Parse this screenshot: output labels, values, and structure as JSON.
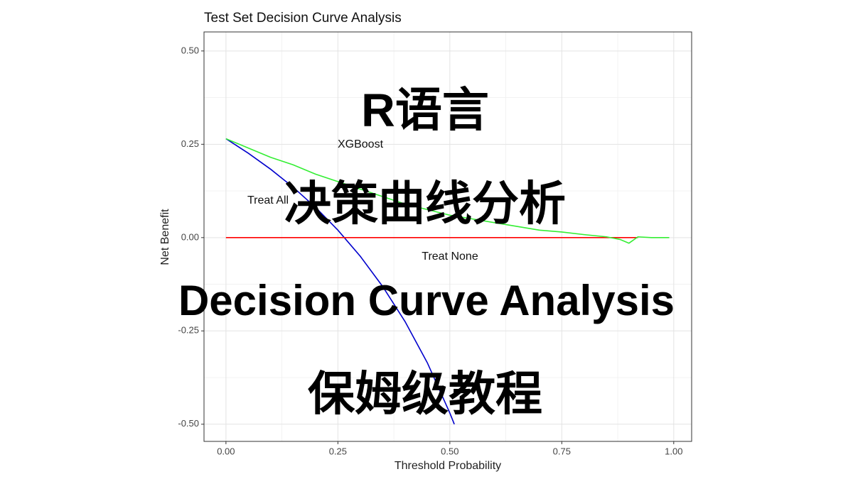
{
  "chart_data": {
    "type": "line",
    "title": "Test Set Decision Curve Analysis",
    "x_label": "Threshold Probability",
    "y_label": "Net Benefit",
    "xlim": [
      -0.049,
      1.04
    ],
    "ylim": [
      -0.546,
      0.551
    ],
    "xticks": [
      {
        "value": 0,
        "label": "0.00"
      },
      {
        "value": 0.25,
        "label": "0.25"
      },
      {
        "value": 0.5,
        "label": "0.50"
      },
      {
        "value": 0.75,
        "label": "0.75"
      },
      {
        "value": 1,
        "label": "1.00"
      }
    ],
    "yticks": [
      {
        "value": -0.5,
        "label": "-0.50"
      },
      {
        "value": -0.25,
        "label": "-0.25"
      },
      {
        "value": 0,
        "label": "0.00"
      },
      {
        "value": 0.25,
        "label": "0.25"
      },
      {
        "value": 0.5,
        "label": "0.50"
      }
    ],
    "grid": true,
    "series": [
      {
        "name": "Treat All",
        "color": "#0000cc",
        "x": [
          0,
          0.05,
          0.1,
          0.15,
          0.2,
          0.25,
          0.3,
          0.35,
          0.4,
          0.45,
          0.5,
          0.51
        ],
        "values": [
          0.265,
          0.226,
          0.183,
          0.135,
          0.081,
          0.02,
          -0.05,
          -0.131,
          -0.225,
          -0.336,
          -0.47,
          -0.5
        ]
      },
      {
        "name": "Treat None",
        "color": "#ff0000",
        "x": [
          0,
          0.92
        ],
        "values": [
          0,
          0
        ]
      },
      {
        "name": "XGBoost",
        "color": "#33ee33",
        "x": [
          0,
          0.05,
          0.1,
          0.15,
          0.2,
          0.25,
          0.3,
          0.35,
          0.4,
          0.45,
          0.5,
          0.55,
          0.6,
          0.65,
          0.7,
          0.75,
          0.8,
          0.85,
          0.88,
          0.9,
          0.92,
          0.95,
          0.99
        ],
        "values": [
          0.265,
          0.24,
          0.215,
          0.195,
          0.17,
          0.15,
          0.13,
          0.11,
          0.09,
          0.075,
          0.06,
          0.05,
          0.04,
          0.03,
          0.02,
          0.015,
          0.008,
          0.002,
          -0.005,
          -0.015,
          0.002,
          0,
          0
        ]
      }
    ],
    "overlay": [
      "R语言",
      "决策曲线分析",
      "Decision Curve Analysis",
      "保姆级教程"
    ]
  }
}
